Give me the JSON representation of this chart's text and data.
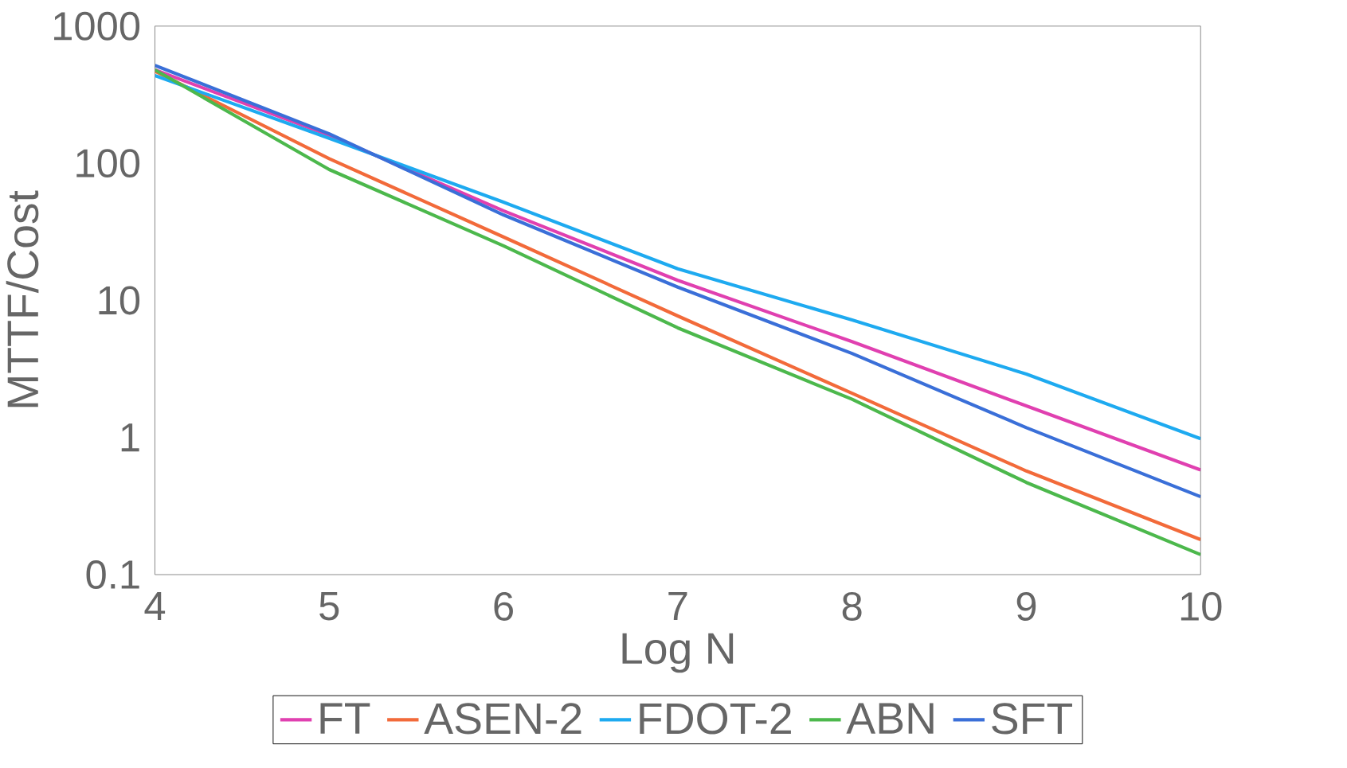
{
  "chart_data": {
    "type": "line",
    "xlabel": "Log N",
    "ylabel": "MTTF/Cost",
    "log": "y",
    "grid": false,
    "legend": "bottom",
    "marker": "none",
    "line_style": "solid",
    "x": [
      4,
      5,
      6,
      7,
      8,
      9,
      10
    ],
    "xlim": [
      4,
      10
    ],
    "xticks": [
      4,
      5,
      6,
      7,
      8,
      9,
      10
    ],
    "ylim": [
      0.1,
      1000
    ],
    "yticks": [
      0.1,
      1,
      10,
      100,
      1000
    ],
    "series": [
      {
        "name": "FT",
        "color": "#e040b0",
        "values": [
          480,
          160,
          45,
          14,
          5,
          1.7,
          0.58
        ]
      },
      {
        "name": "ASEN-2",
        "color": "#f26a3a",
        "values": [
          470,
          108,
          29,
          7.7,
          2.1,
          0.57,
          0.18
        ]
      },
      {
        "name": "FDOT-2",
        "color": "#1eaaf0",
        "values": [
          436,
          152,
          52,
          17,
          7.2,
          2.9,
          0.98
        ]
      },
      {
        "name": "ABN",
        "color": "#4cb84c",
        "values": [
          480,
          90,
          25,
          6.3,
          1.9,
          0.47,
          0.14
        ]
      },
      {
        "name": "SFT",
        "color": "#3a6fd8",
        "values": [
          517,
          164,
          42,
          12.5,
          4.1,
          1.18,
          0.37
        ]
      }
    ]
  }
}
